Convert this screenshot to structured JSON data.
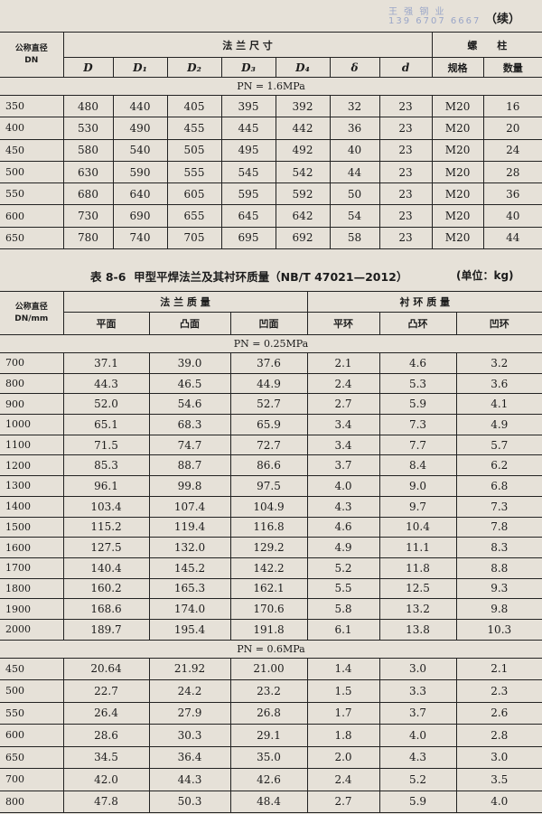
{
  "watermark": {
    "name": "王 强 钢 业",
    "phone": "139 6707 6667"
  },
  "continued": "（续）",
  "table1": {
    "header": {
      "dn": [
        "公称直径",
        "DN"
      ],
      "flange": "法 兰 尺 寸",
      "bolt": "螺　　柱"
    },
    "columns": [
      "D",
      "D₁",
      "D₂",
      "D₃",
      "D₄",
      "δ",
      "d",
      "规格",
      "数量"
    ],
    "section": "PN = 1.6MPa",
    "rows": [
      [
        "350",
        "480",
        "440",
        "405",
        "395",
        "392",
        "32",
        "23",
        "M20",
        "16"
      ],
      [
        "400",
        "530",
        "490",
        "455",
        "445",
        "442",
        "36",
        "23",
        "M20",
        "20"
      ],
      [
        "450",
        "580",
        "540",
        "505",
        "495",
        "492",
        "40",
        "23",
        "M20",
        "24"
      ],
      [
        "500",
        "630",
        "590",
        "555",
        "545",
        "542",
        "44",
        "23",
        "M20",
        "28"
      ],
      [
        "550",
        "680",
        "640",
        "605",
        "595",
        "592",
        "50",
        "23",
        "M20",
        "36"
      ],
      [
        "600",
        "730",
        "690",
        "655",
        "645",
        "642",
        "54",
        "23",
        "M20",
        "40"
      ],
      [
        "650",
        "780",
        "740",
        "705",
        "695",
        "692",
        "58",
        "23",
        "M20",
        "44"
      ]
    ]
  },
  "table2": {
    "caption": {
      "label": "表 8-6",
      "title": "甲型平焊法兰及其衬环质量（NB/T 47021—2012）"
    },
    "unit": "(单位：kg)",
    "header": {
      "dn": [
        "公称直径",
        "DN/mm"
      ],
      "flange": "法 兰 质 量",
      "ring": "衬 环 质 量"
    },
    "columns": [
      "平面",
      "凸面",
      "凹面",
      "平环",
      "凸环",
      "凹环"
    ],
    "sections": [
      {
        "title": "PN = 0.25MPa",
        "rows": [
          [
            "700",
            "37.1",
            "39.0",
            "37.6",
            "2.1",
            "4.6",
            "3.2"
          ],
          [
            "800",
            "44.3",
            "46.5",
            "44.9",
            "2.4",
            "5.3",
            "3.6"
          ],
          [
            "900",
            "52.0",
            "54.6",
            "52.7",
            "2.7",
            "5.9",
            "4.1"
          ],
          [
            "1000",
            "65.1",
            "68.3",
            "65.9",
            "3.4",
            "7.3",
            "4.9"
          ],
          [
            "1100",
            "71.5",
            "74.7",
            "72.7",
            "3.4",
            "7.7",
            "5.7"
          ],
          [
            "1200",
            "85.3",
            "88.7",
            "86.6",
            "3.7",
            "8.4",
            "6.2"
          ],
          [
            "1300",
            "96.1",
            "99.8",
            "97.5",
            "4.0",
            "9.0",
            "6.8"
          ],
          [
            "1400",
            "103.4",
            "107.4",
            "104.9",
            "4.3",
            "9.7",
            "7.3"
          ],
          [
            "1500",
            "115.2",
            "119.4",
            "116.8",
            "4.6",
            "10.4",
            "7.8"
          ],
          [
            "1600",
            "127.5",
            "132.0",
            "129.2",
            "4.9",
            "11.1",
            "8.3"
          ],
          [
            "1700",
            "140.4",
            "145.2",
            "142.2",
            "5.2",
            "11.8",
            "8.8"
          ],
          [
            "1800",
            "160.2",
            "165.3",
            "162.1",
            "5.5",
            "12.5",
            "9.3"
          ],
          [
            "1900",
            "168.6",
            "174.0",
            "170.6",
            "5.8",
            "13.2",
            "9.8"
          ],
          [
            "2000",
            "189.7",
            "195.4",
            "191.8",
            "6.1",
            "13.8",
            "10.3"
          ]
        ]
      },
      {
        "title": "PN = 0.6MPa",
        "rows": [
          [
            "450",
            "20.64",
            "21.92",
            "21.00",
            "1.4",
            "3.0",
            "2.1"
          ],
          [
            "500",
            "22.7",
            "24.2",
            "23.2",
            "1.5",
            "3.3",
            "2.3"
          ],
          [
            "550",
            "26.4",
            "27.9",
            "26.8",
            "1.7",
            "3.7",
            "2.6"
          ],
          [
            "600",
            "28.6",
            "30.3",
            "29.1",
            "1.8",
            "4.0",
            "2.8"
          ],
          [
            "650",
            "34.5",
            "36.4",
            "35.0",
            "2.0",
            "4.3",
            "3.0"
          ],
          [
            "700",
            "42.0",
            "44.3",
            "42.6",
            "2.4",
            "5.2",
            "3.5"
          ],
          [
            "800",
            "47.8",
            "50.3",
            "48.4",
            "2.7",
            "5.9",
            "4.0"
          ]
        ]
      }
    ]
  }
}
